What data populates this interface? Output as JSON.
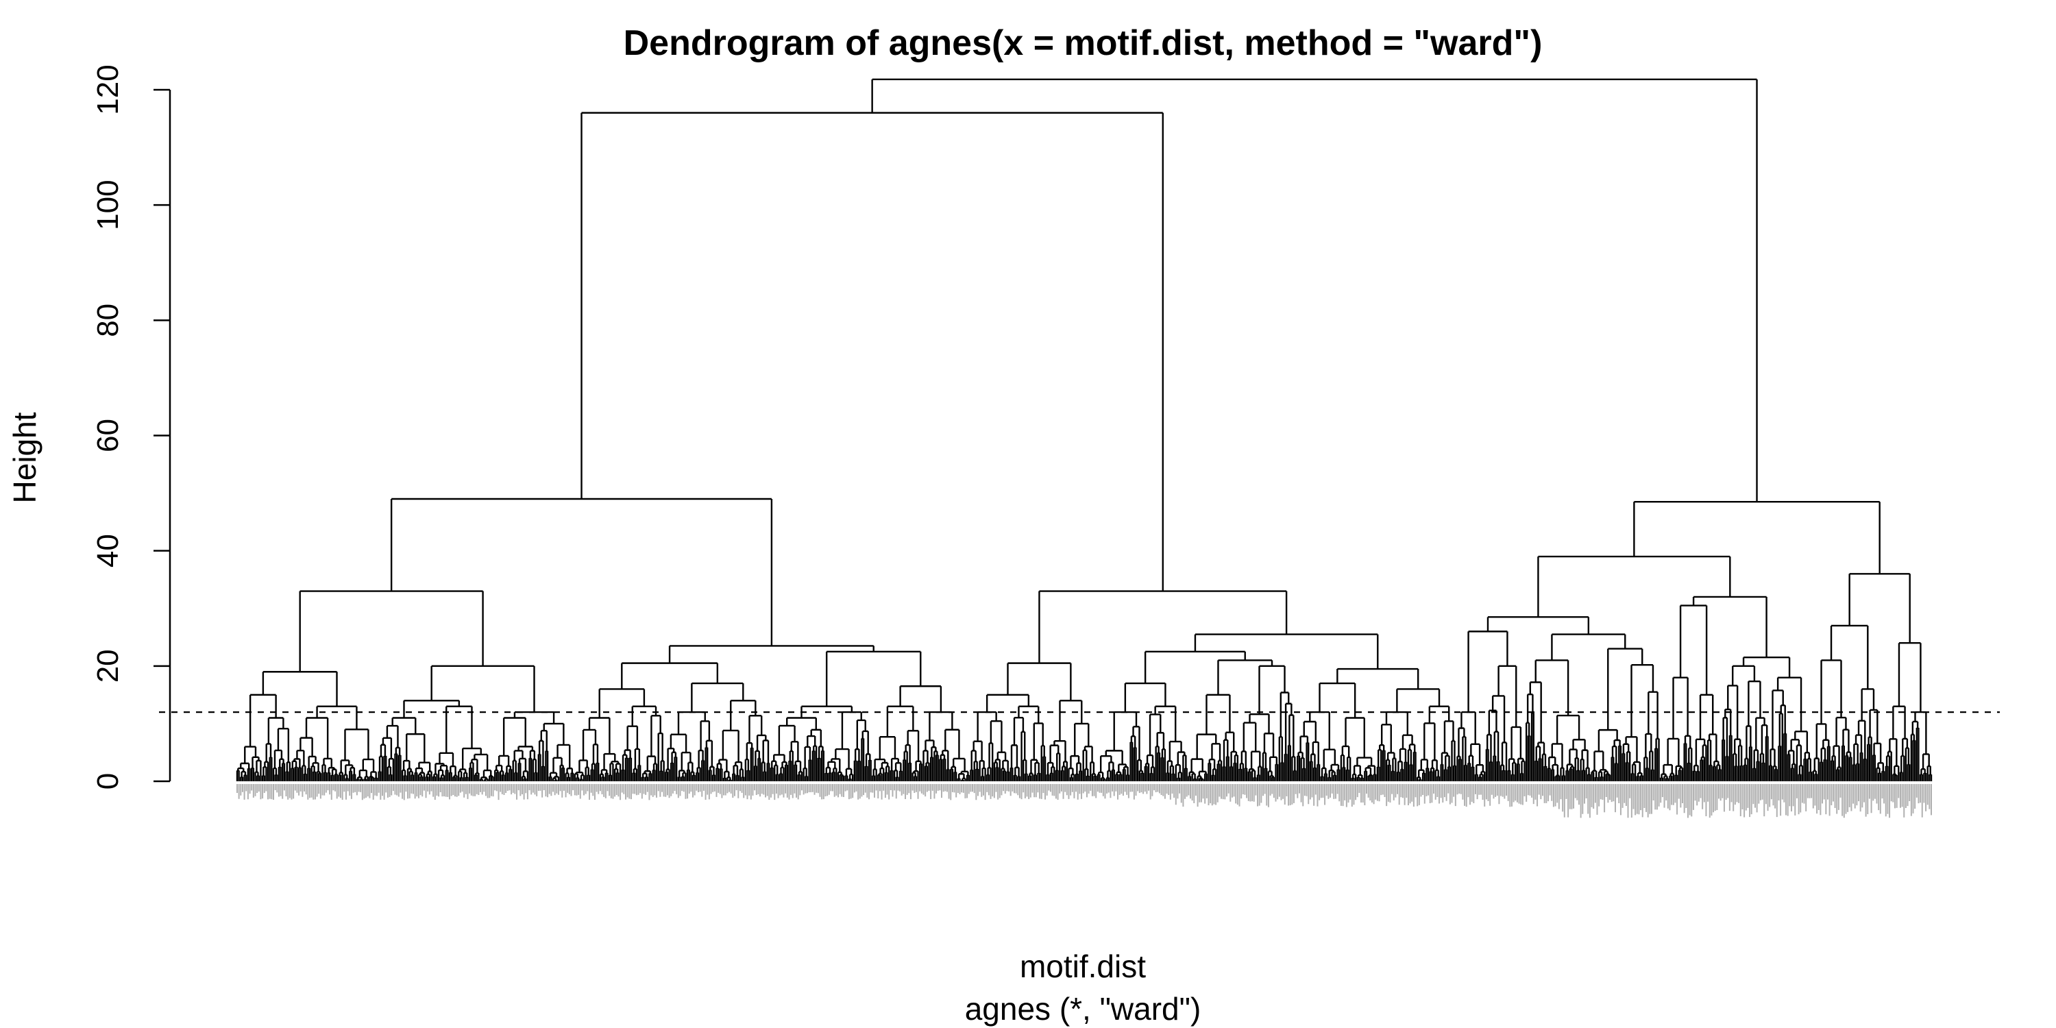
{
  "chart_data": {
    "type": "dendrogram",
    "title": "Dendrogram of  agnes(x = motif.dist, method = \"ward\")",
    "ylabel": "Height",
    "xlabel": "motif.dist",
    "sub": "agnes (*, \"ward\")",
    "ylim": [
      0,
      120
    ],
    "yticks": [
      0,
      20,
      40,
      60,
      80,
      100,
      120
    ],
    "cut_height": 12,
    "cut_line_style": "dashed",
    "leaf_label_color": "#b0b0b0",
    "line_color": "#000000",
    "clusters": [
      {
        "height": 116,
        "children": [
          {
            "height": 49,
            "children": [
              {
                "height": 33,
                "children": [
                  {
                    "height": 19,
                    "children": [
                      {
                        "height": 15,
                        "children": [
                          {
                            "height": 6,
                            "leaves": 14
                          },
                          {
                            "height": 11,
                            "leaves": 16
                          }
                        ]
                      },
                      {
                        "height": 13,
                        "children": [
                          {
                            "height": 11,
                            "leaves": 26
                          },
                          {
                            "height": 9,
                            "leaves": 22
                          }
                        ]
                      }
                    ]
                  },
                  {
                    "height": 20,
                    "children": [
                      {
                        "height": 14,
                        "children": [
                          {
                            "height": 11,
                            "leaves": 30
                          },
                          {
                            "height": 13,
                            "leaves": 34
                          }
                        ]
                      },
                      {
                        "height": 12,
                        "children": [
                          {
                            "height": 11,
                            "leaves": 24
                          },
                          {
                            "height": 10,
                            "leaves": 20
                          }
                        ]
                      }
                    ]
                  }
                ]
              },
              {
                "height": 23.5,
                "children": [
                  {
                    "height": 20.5,
                    "children": [
                      {
                        "height": 16,
                        "children": [
                          {
                            "height": 11,
                            "leaves": 26
                          },
                          {
                            "height": 13,
                            "leaves": 24
                          }
                        ]
                      },
                      {
                        "height": 17,
                        "children": [
                          {
                            "height": 12,
                            "leaves": 28
                          },
                          {
                            "height": 14,
                            "leaves": 30
                          }
                        ]
                      }
                    ]
                  },
                  {
                    "height": 22.5,
                    "children": [
                      {
                        "height": 13,
                        "children": [
                          {
                            "height": 11,
                            "leaves": 30
                          },
                          {
                            "height": 12,
                            "leaves": 26
                          }
                        ]
                      },
                      {
                        "height": 16.5,
                        "children": [
                          {
                            "height": 13,
                            "leaves": 28
                          },
                          {
                            "height": 12,
                            "leaves": 26
                          }
                        ]
                      }
                    ]
                  }
                ]
              }
            ]
          },
          {
            "height": 33,
            "children": [
              {
                "height": 20.5,
                "children": [
                  {
                    "height": 15,
                    "children": [
                      {
                        "height": 12,
                        "leaves": 22
                      },
                      {
                        "height": 13,
                        "leaves": 20
                      }
                    ]
                  },
                  {
                    "height": 14,
                    "children": [
                      {
                        "height": 7,
                        "leaves": 12
                      },
                      {
                        "height": 10,
                        "leaves": 16
                      }
                    ]
                  }
                ]
              },
              {
                "height": 25.5,
                "children": [
                  {
                    "height": 22.5,
                    "children": [
                      {
                        "height": 17,
                        "children": [
                          {
                            "height": 12,
                            "leaves": 26
                          },
                          {
                            "height": 13,
                            "leaves": 24
                          }
                        ]
                      },
                      {
                        "height": 21,
                        "children": [
                          {
                            "height": 15,
                            "leaves": 28
                          },
                          {
                            "height": 20,
                            "leaves": 32
                          }
                        ]
                      }
                    ]
                  },
                  {
                    "height": 19.5,
                    "children": [
                      {
                        "height": 17,
                        "children": [
                          {
                            "height": 12,
                            "leaves": 24
                          },
                          {
                            "height": 11,
                            "leaves": 20
                          }
                        ]
                      },
                      {
                        "height": 16,
                        "children": [
                          {
                            "height": 12,
                            "leaves": 22
                          },
                          {
                            "height": 13,
                            "leaves": 22
                          }
                        ]
                      }
                    ]
                  }
                ]
              }
            ]
          }
        ]
      },
      {
        "height": 48.5,
        "children": [
          {
            "height": 39,
            "children": [
              {
                "height": 28.5,
                "children": [
                  {
                    "height": 26,
                    "children": [
                      {
                        "height": 12,
                        "leaves": 16
                      },
                      {
                        "height": 20,
                        "leaves": 22
                      }
                    ]
                  },
                  {
                    "height": 25.5,
                    "children": [
                      {
                        "height": 21,
                        "leaves": 36
                      },
                      {
                        "height": 23,
                        "leaves": 38
                      }
                    ]
                  }
                ]
              },
              {
                "height": 32,
                "children": [
                  {
                    "height": 30.5,
                    "children": [
                      {
                        "height": 18,
                        "leaves": 18
                      },
                      {
                        "height": 15,
                        "leaves": 16
                      }
                    ]
                  },
                  {
                    "height": 21.5,
                    "children": [
                      {
                        "height": 20,
                        "leaves": 26
                      },
                      {
                        "height": 18,
                        "leaves": 24
                      }
                    ]
                  }
                ]
              }
            ]
          },
          {
            "height": 36,
            "children": [
              {
                "height": 27,
                "children": [
                  {
                    "height": 21,
                    "leaves": 22
                  },
                  {
                    "height": 16,
                    "leaves": 18
                  }
                ]
              },
              {
                "height": 24,
                "children": [
                  {
                    "height": 13,
                    "leaves": 14
                  },
                  {
                    "height": 12,
                    "leaves": 12
                  }
                ]
              }
            ]
          }
        ]
      }
    ]
  }
}
